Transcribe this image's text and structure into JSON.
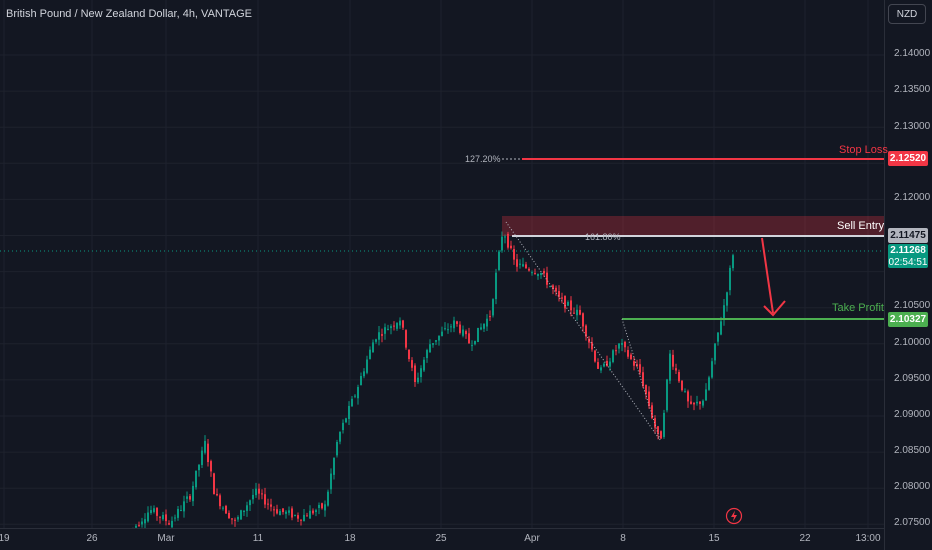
{
  "header": {
    "title": "British Pound / New Zealand Dollar, 4h, VANTAGE"
  },
  "currency_button": {
    "label": "NZD"
  },
  "price_axis": {
    "ticks": [
      "2.14000",
      "2.13500",
      "2.13000",
      "2.12500",
      "2.12000",
      "2.11500",
      "2.11000",
      "2.10500",
      "2.10000",
      "2.09500",
      "2.09000",
      "2.08500",
      "2.08000",
      "2.07500"
    ]
  },
  "time_axis": {
    "ticks": [
      "19",
      "26",
      "Mar",
      "11",
      "18",
      "25",
      "Apr",
      "8",
      "15",
      "22",
      "13:00"
    ]
  },
  "annotations": {
    "stop_loss": {
      "label": "Stop Loss",
      "price": "2.12520",
      "color": "#f23645"
    },
    "sell_entry": {
      "label": "Sell Entry",
      "price": "2.11475"
    },
    "take_profit": {
      "label": "Take Profit",
      "price": "2.10327",
      "color": "#4caf50"
    },
    "fib_127": "127.20%",
    "fib_161": "161.80%",
    "current_price": "2.11268",
    "countdown": "02:54:51"
  },
  "colors": {
    "up": "#089981",
    "down": "#f23645",
    "background": "#131722"
  }
}
